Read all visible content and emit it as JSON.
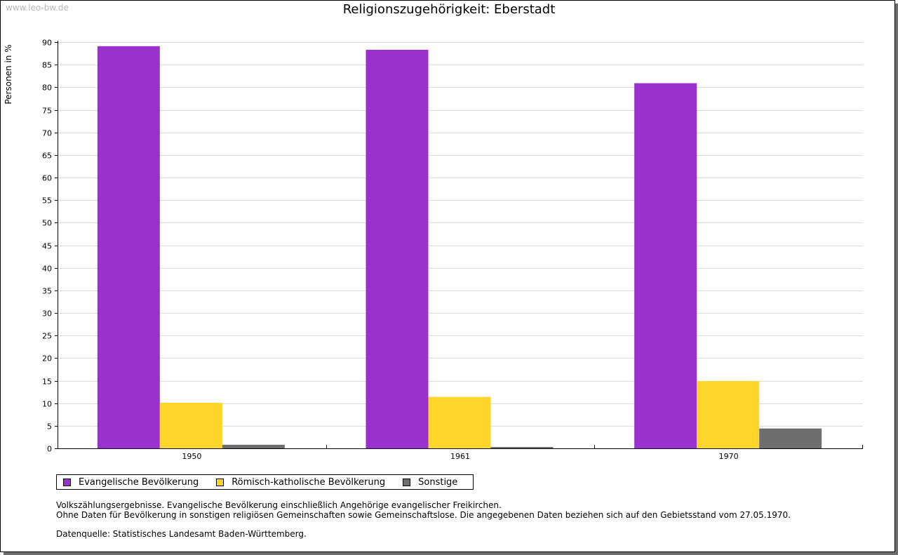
{
  "watermark": "www.leo-bw.de",
  "legend_items": [
    {
      "label": "Evangelische Bevölkerung",
      "color": "#9932cc"
    },
    {
      "label": "Römisch-katholische Bevölkerung",
      "color": "#fdd52b"
    },
    {
      "label": "Sonstige",
      "color": "#6e6e6e"
    }
  ],
  "notes": {
    "line1": "Volkszählungsergebnisse. Evangelische Bevölkerung einschließlich Angehörige evangelischer Freikirchen.",
    "line2": "Ohne Daten für Bevölkerung in sonstigen religiösen Gemeinschaften sowie Gemeinschaftslose. Die angegebenen Daten beziehen sich auf den Gebietsstand vom 27.05.1970.",
    "source": "Datenquelle: Statistisches Landesamt Baden-Württemberg."
  },
  "chart_data": {
    "type": "bar",
    "title": "Religionszugehörigkeit: Eberstadt",
    "xlabel": "",
    "ylabel": "Personen in %",
    "categories": [
      "1950",
      "1961",
      "1970"
    ],
    "series": [
      {
        "name": "Evangelische Bevölkerung",
        "color": "#9932cc",
        "values": [
          89.1,
          88.3,
          80.9
        ]
      },
      {
        "name": "Römisch-katholische Bevölkerung",
        "color": "#fdd52b",
        "values": [
          10.1,
          11.4,
          14.9
        ]
      },
      {
        "name": "Sonstige",
        "color": "#6e6e6e",
        "values": [
          0.8,
          0.3,
          4.4
        ]
      }
    ],
    "ylim": [
      0,
      90
    ],
    "yticks": [
      0,
      5,
      10,
      15,
      20,
      25,
      30,
      35,
      40,
      45,
      50,
      55,
      60,
      65,
      70,
      75,
      80,
      85,
      90
    ],
    "grid": true,
    "legend": "bottom"
  }
}
